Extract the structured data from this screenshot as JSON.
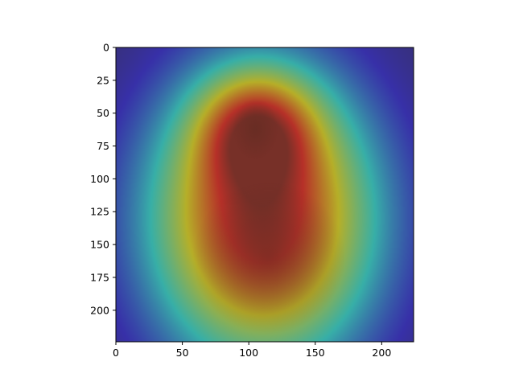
{
  "chart_data": {
    "type": "heatmap",
    "title": "",
    "xlabel": "",
    "ylabel": "",
    "xlim": [
      0,
      224
    ],
    "ylim": [
      224,
      0
    ],
    "x_ticks": [
      0,
      50,
      100,
      150,
      200
    ],
    "y_ticks": [
      0,
      25,
      50,
      75,
      100,
      125,
      150,
      175,
      200
    ],
    "grid": false,
    "colormap": "jet",
    "overlay_alpha": 0.5,
    "heat_centers": [
      {
        "x": 110,
        "y": 130,
        "sx": 62,
        "sy": 80,
        "weight": 1.0
      },
      {
        "x": 105,
        "y": 60,
        "sx": 30,
        "sy": 30,
        "weight": 0.45
      }
    ],
    "colors": {
      "background": "#ffffff",
      "axes": "#000000"
    }
  }
}
